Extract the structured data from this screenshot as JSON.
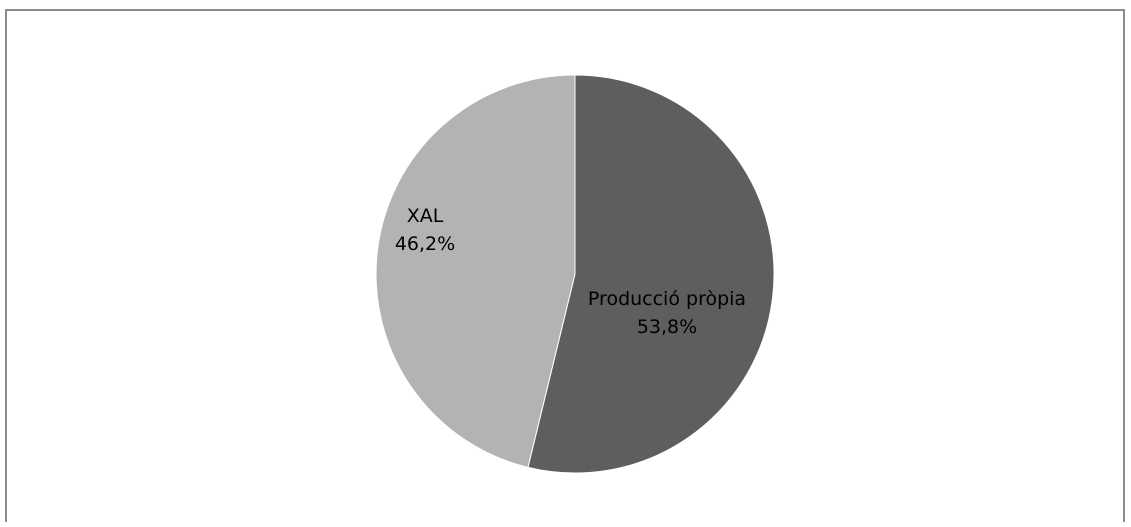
{
  "chart_data": {
    "type": "pie",
    "title": "",
    "slices": [
      {
        "label": "Producció pròpia",
        "value": 53.8,
        "value_label": "53,8%",
        "color": "#5e5e5e"
      },
      {
        "label": "XAL",
        "value": 46.2,
        "value_label": "46,2%",
        "color": "#b3b3b3"
      }
    ],
    "start": "12 o'clock",
    "direction": "clockwise",
    "legend": "none",
    "labels": "inside"
  }
}
